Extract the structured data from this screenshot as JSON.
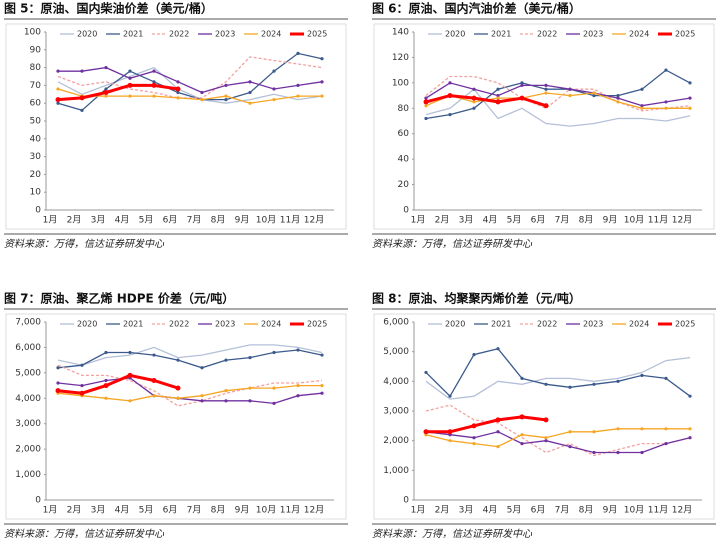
{
  "chart_data": [
    {
      "type": "line",
      "title": "图 5：原油、国内柴油价差（美元/桶）",
      "source": "资料来源：万得，信达证券研发中心",
      "categories": [
        "1月",
        "2月",
        "3月",
        "4月",
        "5月",
        "6月",
        "7月",
        "8月",
        "9月",
        "10月",
        "11月",
        "12月"
      ],
      "ylim": [
        0,
        100
      ],
      "yticks": [
        0,
        10,
        20,
        30,
        40,
        50,
        60,
        70,
        80,
        90,
        100
      ],
      "series": [
        {
          "name": "2020",
          "color": "#b4c0d8",
          "values": [
            72,
            65,
            70,
            75,
            80,
            68,
            62,
            60,
            62,
            65,
            62,
            64
          ]
        },
        {
          "name": "2021",
          "color": "#3b5a8c",
          "marker": true,
          "values": [
            60,
            56,
            68,
            78,
            72,
            66,
            62,
            62,
            66,
            78,
            88,
            85
          ]
        },
        {
          "name": "2022",
          "color": "#f4a0a0",
          "dash": true,
          "values": [
            75,
            70,
            72,
            68,
            66,
            63,
            63,
            72,
            86,
            84,
            82,
            80
          ]
        },
        {
          "name": "2023",
          "color": "#7030a0",
          "marker": true,
          "values": [
            78,
            78,
            80,
            74,
            78,
            72,
            66,
            70,
            72,
            68,
            70,
            72
          ]
        },
        {
          "name": "2024",
          "color": "#f5a623",
          "marker": true,
          "values": [
            68,
            64,
            64,
            64,
            64,
            63,
            62,
            64,
            60,
            62,
            64,
            64
          ]
        },
        {
          "name": "2025",
          "color": "#ff0000",
          "line_width": 3,
          "values": [
            62,
            63,
            66,
            70,
            70,
            68,
            null,
            null,
            null,
            null,
            null,
            null
          ]
        }
      ]
    },
    {
      "type": "line",
      "title": "图 6：原油、国内汽油价差（美元/桶）",
      "source": "资料来源：万得，信达证券研发中心",
      "categories": [
        "1月",
        "2月",
        "3月",
        "4月",
        "5月",
        "6月",
        "7月",
        "8月",
        "9月",
        "10月",
        "11月",
        "12月"
      ],
      "ylim": [
        0,
        140
      ],
      "yticks": [
        0,
        20,
        40,
        60,
        80,
        100,
        120,
        140
      ],
      "series": [
        {
          "name": "2020",
          "color": "#b4c0d8",
          "values": [
            75,
            80,
            95,
            72,
            80,
            68,
            66,
            68,
            72,
            72,
            70,
            74
          ]
        },
        {
          "name": "2021",
          "color": "#3b5a8c",
          "marker": true,
          "values": [
            72,
            75,
            80,
            95,
            100,
            95,
            95,
            90,
            90,
            95,
            110,
            100
          ]
        },
        {
          "name": "2022",
          "color": "#f4a0a0",
          "dash": true,
          "values": [
            90,
            105,
            105,
            100,
            88,
            80,
            95,
            95,
            85,
            78,
            80,
            82
          ]
        },
        {
          "name": "2023",
          "color": "#7030a0",
          "marker": true,
          "values": [
            88,
            100,
            95,
            90,
            98,
            98,
            95,
            92,
            88,
            82,
            85,
            88
          ]
        },
        {
          "name": "2024",
          "color": "#f5a623",
          "marker": true,
          "values": [
            82,
            90,
            85,
            88,
            88,
            92,
            90,
            92,
            85,
            80,
            80,
            80
          ]
        },
        {
          "name": "2025",
          "color": "#ff0000",
          "line_width": 3,
          "values": [
            85,
            90,
            88,
            85,
            88,
            82,
            null,
            null,
            null,
            null,
            null,
            null
          ]
        }
      ]
    },
    {
      "type": "line",
      "title": "图 7：原油、聚乙烯 HDPE 价差（元/吨）",
      "source": "资料来源：万得，信达证券研发中心",
      "categories": [
        "1月",
        "2月",
        "3月",
        "4月",
        "5月",
        "6月",
        "7月",
        "8月",
        "9月",
        "10月",
        "11月",
        "12月"
      ],
      "ylim": [
        0,
        7000
      ],
      "yticks": [
        0,
        {
          "value": 1000,
          "label": "1,000"
        },
        {
          "value": 2000,
          "label": "2,000"
        },
        {
          "value": 3000,
          "label": "3,000"
        },
        {
          "value": 4000,
          "label": "4,000"
        },
        {
          "value": 5000,
          "label": "5,000"
        },
        {
          "value": 6000,
          "label": "6,000"
        },
        {
          "value": 7000,
          "label": "7,000"
        }
      ],
      "series": [
        {
          "name": "2020",
          "color": "#b4c0d8",
          "values": [
            5500,
            5300,
            5600,
            5700,
            6000,
            5600,
            5700,
            5900,
            6100,
            6100,
            6000,
            5800
          ]
        },
        {
          "name": "2021",
          "color": "#3b5a8c",
          "marker": true,
          "values": [
            5200,
            5300,
            5800,
            5800,
            5700,
            5500,
            5200,
            5500,
            5600,
            5800,
            5900,
            5700
          ]
        },
        {
          "name": "2022",
          "color": "#f4a0a0",
          "dash": true,
          "values": [
            5300,
            4900,
            4900,
            4700,
            4300,
            3700,
            3900,
            4200,
            4400,
            4600,
            4600,
            4700
          ]
        },
        {
          "name": "2023",
          "color": "#7030a0",
          "marker": true,
          "values": [
            4600,
            4500,
            4700,
            4800,
            4100,
            4000,
            3900,
            3900,
            3900,
            3800,
            4100,
            4200
          ]
        },
        {
          "name": "2024",
          "color": "#f5a623",
          "marker": true,
          "values": [
            4200,
            4100,
            4000,
            3900,
            4100,
            4000,
            4100,
            4300,
            4400,
            4400,
            4500,
            4500
          ]
        },
        {
          "name": "2025",
          "color": "#ff0000",
          "line_width": 3,
          "values": [
            4300,
            4200,
            4500,
            4900,
            4700,
            4400,
            null,
            null,
            null,
            null,
            null,
            null
          ]
        }
      ]
    },
    {
      "type": "line",
      "title": "图 8：原油、均聚聚丙烯价差（元/吨）",
      "source": "资料来源：万得，信达证券研发中心",
      "categories": [
        "1月",
        "2月",
        "3月",
        "4月",
        "5月",
        "6月",
        "7月",
        "8月",
        "9月",
        "10月",
        "11月",
        "12月"
      ],
      "ylim": [
        0,
        6000
      ],
      "yticks": [
        0,
        {
          "value": 1000,
          "label": "1,000"
        },
        {
          "value": 2000,
          "label": "2,000"
        },
        {
          "value": 3000,
          "label": "3,000"
        },
        {
          "value": 4000,
          "label": "4,000"
        },
        {
          "value": 5000,
          "label": "5,000"
        },
        {
          "value": 6000,
          "label": "6,000"
        }
      ],
      "series": [
        {
          "name": "2020",
          "color": "#b4c0d8",
          "values": [
            4000,
            3400,
            3500,
            4000,
            3900,
            4100,
            4100,
            4000,
            4100,
            4300,
            4700,
            4800
          ]
        },
        {
          "name": "2021",
          "color": "#3b5a8c",
          "marker": true,
          "values": [
            4300,
            3500,
            4900,
            5100,
            4100,
            3900,
            3800,
            3900,
            4000,
            4200,
            4100,
            3500
          ]
        },
        {
          "name": "2022",
          "color": "#f4a0a0",
          "dash": true,
          "values": [
            3000,
            3200,
            2700,
            2600,
            2100,
            1600,
            1900,
            1500,
            1700,
            1900,
            1900,
            2100
          ]
        },
        {
          "name": "2023",
          "color": "#7030a0",
          "marker": true,
          "values": [
            2300,
            2200,
            2100,
            2300,
            1900,
            2000,
            1800,
            1600,
            1600,
            1600,
            1900,
            2100
          ]
        },
        {
          "name": "2024",
          "color": "#f5a623",
          "marker": true,
          "values": [
            2200,
            2000,
            1900,
            1800,
            2200,
            2100,
            2300,
            2300,
            2400,
            2400,
            2400,
            2400
          ]
        },
        {
          "name": "2025",
          "color": "#ff0000",
          "line_width": 3,
          "values": [
            2300,
            2300,
            2500,
            2700,
            2800,
            2700,
            null,
            null,
            null,
            null,
            null,
            null
          ]
        }
      ]
    }
  ]
}
